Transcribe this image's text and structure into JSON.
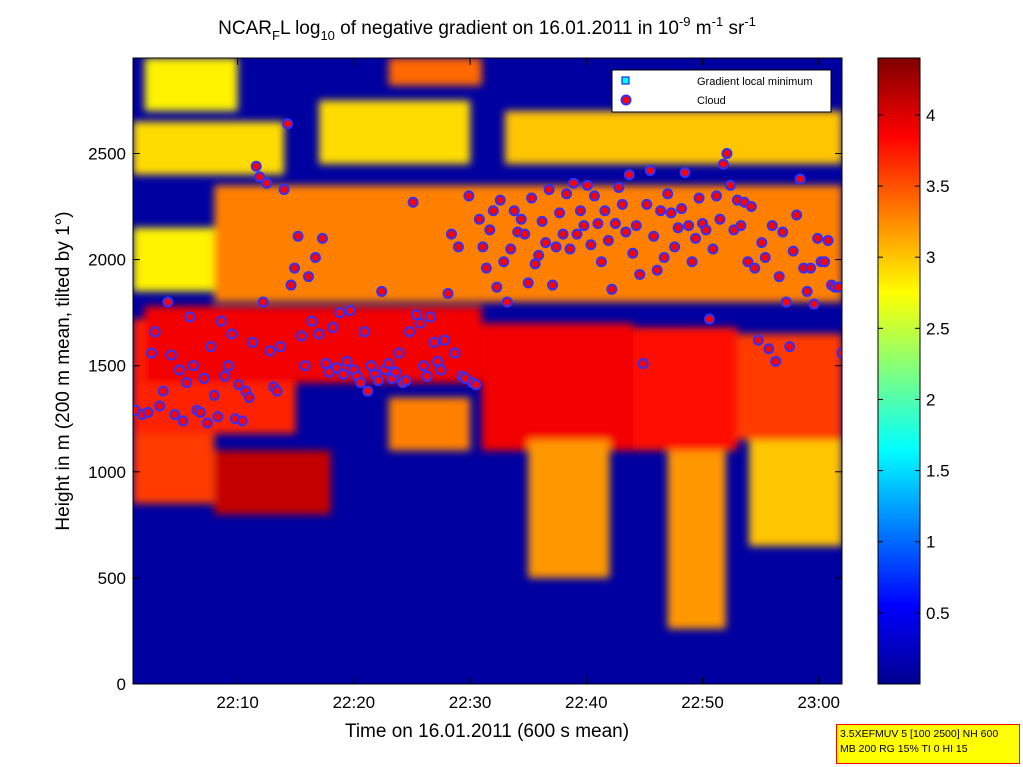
{
  "colors": {
    "background": "#0000a0",
    "colormap": "jet",
    "point_fill": "#ff0000",
    "point_edge": "#3030ff",
    "legend_min_marker": "#00ffff",
    "info_box": "#ffff00",
    "info_border": "#ff0000"
  },
  "info_box": {
    "line1": "3.5XEFMUV 5 [100 2500] NH 600",
    "line2": "MB 200 RG 15% TI 0 HI 15"
  },
  "chart_data": {
    "type": "heatmap",
    "title_parts": {
      "p1": "NCAR",
      "sub1": "F",
      "p2": "L log",
      "sub2": "10",
      "p3": " of negative gradient on 16.01.2011 in 10",
      "sup1": "-9",
      "p4": " m",
      "sup2": "-1",
      "p5": " sr",
      "sup3": "-1"
    },
    "xlabel": "Time on 16.01.2011 (600 s mean)",
    "ylabel": "Height in m (200 m mean, tilted by 1°)",
    "x_range_minutes": [
      1321,
      1382
    ],
    "x_ticks": [
      {
        "v": 1330,
        "label": "22:10"
      },
      {
        "v": 1340,
        "label": "22:20"
      },
      {
        "v": 1350,
        "label": "22:30"
      },
      {
        "v": 1360,
        "label": "22:40"
      },
      {
        "v": 1370,
        "label": "22:50"
      },
      {
        "v": 1380,
        "label": "23:00"
      }
    ],
    "ylim": [
      0,
      2950
    ],
    "y_ticks": [
      0,
      500,
      1000,
      1500,
      2000,
      2500
    ],
    "colorbar": {
      "range": [
        0,
        4.4
      ],
      "ticks": [
        0.5,
        1,
        1.5,
        2,
        2.5,
        3,
        3.5,
        4
      ],
      "labels": [
        "0.5",
        "1",
        "1.5",
        "2",
        "2.5",
        "3",
        "3.5",
        "4"
      ]
    },
    "legend": {
      "position": "top-right",
      "entries": [
        "Gradient local minimum",
        "Cloud"
      ]
    },
    "layers": [
      {
        "x0": 1321,
        "x1": 1328,
        "y0": 850,
        "y1": 1180,
        "v": 3.6
      },
      {
        "x0": 1321,
        "x1": 1335,
        "y0": 1180,
        "y1": 1720,
        "v": 3.7
      },
      {
        "x0": 1322,
        "x1": 1351,
        "y0": 1420,
        "y1": 1780,
        "v": 3.9
      },
      {
        "x0": 1328,
        "x1": 1338,
        "y0": 800,
        "y1": 1100,
        "v": 4.1
      },
      {
        "x0": 1343,
        "x1": 1350,
        "y0": 1100,
        "y1": 1350,
        "v": 3.3
      },
      {
        "x0": 1351,
        "x1": 1364,
        "y0": 1100,
        "y1": 1700,
        "v": 3.9
      },
      {
        "x0": 1355,
        "x1": 1362,
        "y0": 500,
        "y1": 1150,
        "v": 3.2
      },
      {
        "x0": 1364,
        "x1": 1373,
        "y0": 1100,
        "y1": 1680,
        "v": 3.8
      },
      {
        "x0": 1367,
        "x1": 1372,
        "y0": 260,
        "y1": 1100,
        "v": 3.2
      },
      {
        "x0": 1373,
        "x1": 1382,
        "y0": 1150,
        "y1": 1650,
        "v": 3.6
      },
      {
        "x0": 1374,
        "x1": 1382,
        "y0": 650,
        "y1": 1150,
        "v": 3.0
      },
      {
        "x0": 1321,
        "x1": 1334,
        "y0": 2400,
        "y1": 2650,
        "v": 2.9
      },
      {
        "x0": 1337,
        "x1": 1350,
        "y0": 2450,
        "y1": 2750,
        "v": 2.9
      },
      {
        "x0": 1343,
        "x1": 1351,
        "y0": 2820,
        "y1": 2950,
        "v": 3.4
      },
      {
        "x0": 1353,
        "x1": 1382,
        "y0": 2450,
        "y1": 2700,
        "v": 3.0
      },
      {
        "x0": 1322,
        "x1": 1330,
        "y0": 2700,
        "y1": 2950,
        "v": 2.8
      },
      {
        "x0": 1328,
        "x1": 1382,
        "y0": 1800,
        "y1": 2350,
        "v": 3.3
      },
      {
        "x0": 1321,
        "x1": 1328,
        "y0": 1850,
        "y1": 2150,
        "v": 2.8
      }
    ],
    "cloud_points": [
      [
        1321.2,
        1290
      ],
      [
        1321.8,
        1270
      ],
      [
        1322.3,
        1280
      ],
      [
        1322.6,
        1560
      ],
      [
        1322.9,
        1660
      ],
      [
        1323.3,
        1310
      ],
      [
        1323.6,
        1380
      ],
      [
        1324.0,
        1800
      ],
      [
        1324.3,
        1550
      ],
      [
        1324.6,
        1270
      ],
      [
        1325.0,
        1480
      ],
      [
        1325.3,
        1240
      ],
      [
        1325.6,
        1420
      ],
      [
        1325.9,
        1730
      ],
      [
        1326.2,
        1500
      ],
      [
        1326.5,
        1290
      ],
      [
        1326.8,
        1280
      ],
      [
        1327.1,
        1440
      ],
      [
        1327.4,
        1230
      ],
      [
        1327.7,
        1590
      ],
      [
        1328.0,
        1360
      ],
      [
        1328.3,
        1260
      ],
      [
        1328.6,
        1710
      ],
      [
        1328.9,
        1450
      ],
      [
        1329.2,
        1500
      ],
      [
        1329.5,
        1650
      ],
      [
        1329.8,
        1250
      ],
      [
        1330.1,
        1410
      ],
      [
        1330.4,
        1240
      ],
      [
        1330.7,
        1380
      ],
      [
        1331.0,
        1350
      ],
      [
        1331.3,
        1610
      ],
      [
        1331.6,
        2440
      ],
      [
        1331.9,
        2390
      ],
      [
        1332.2,
        1800
      ],
      [
        1332.5,
        2360
      ],
      [
        1332.8,
        1570
      ],
      [
        1333.1,
        1400
      ],
      [
        1333.4,
        1380
      ],
      [
        1333.7,
        1590
      ],
      [
        1334.0,
        2330
      ],
      [
        1334.3,
        2640
      ],
      [
        1334.6,
        1880
      ],
      [
        1334.9,
        1960
      ],
      [
        1335.2,
        2110
      ],
      [
        1335.5,
        1640
      ],
      [
        1335.8,
        1500
      ],
      [
        1336.1,
        1920
      ],
      [
        1336.4,
        1710
      ],
      [
        1336.7,
        2010
      ],
      [
        1337.0,
        1650
      ],
      [
        1337.3,
        2100
      ],
      [
        1337.6,
        1510
      ],
      [
        1337.9,
        1470
      ],
      [
        1338.2,
        1680
      ],
      [
        1338.5,
        1490
      ],
      [
        1338.8,
        1750
      ],
      [
        1339.1,
        1460
      ],
      [
        1339.4,
        1520
      ],
      [
        1339.7,
        1760
      ],
      [
        1340.0,
        1480
      ],
      [
        1340.3,
        1450
      ],
      [
        1340.6,
        1420
      ],
      [
        1340.9,
        1660
      ],
      [
        1341.2,
        1380
      ],
      [
        1341.5,
        1500
      ],
      [
        1341.8,
        1460
      ],
      [
        1342.1,
        1430
      ],
      [
        1342.4,
        1850
      ],
      [
        1342.7,
        1480
      ],
      [
        1343.0,
        1510
      ],
      [
        1343.3,
        1440
      ],
      [
        1343.6,
        1470
      ],
      [
        1343.9,
        1560
      ],
      [
        1344.2,
        1420
      ],
      [
        1344.5,
        1430
      ],
      [
        1344.8,
        1660
      ],
      [
        1345.1,
        2270
      ],
      [
        1345.4,
        1740
      ],
      [
        1345.7,
        1700
      ],
      [
        1346.0,
        1500
      ],
      [
        1346.3,
        1450
      ],
      [
        1346.6,
        1730
      ],
      [
        1346.9,
        1610
      ],
      [
        1347.2,
        1520
      ],
      [
        1347.5,
        1480
      ],
      [
        1347.8,
        1620
      ],
      [
        1348.1,
        1840
      ],
      [
        1348.4,
        2120
      ],
      [
        1348.7,
        1560
      ],
      [
        1349.0,
        2060
      ],
      [
        1349.3,
        1450
      ],
      [
        1349.6,
        1440
      ],
      [
        1349.9,
        2300
      ],
      [
        1350.2,
        1420
      ],
      [
        1350.5,
        1410
      ],
      [
        1350.8,
        2190
      ],
      [
        1351.1,
        2060
      ],
      [
        1351.4,
        1960
      ],
      [
        1351.7,
        2140
      ],
      [
        1352.0,
        2230
      ],
      [
        1352.3,
        1870
      ],
      [
        1352.6,
        2280
      ],
      [
        1352.9,
        1990
      ],
      [
        1353.2,
        1800
      ],
      [
        1353.5,
        2050
      ],
      [
        1353.8,
        2230
      ],
      [
        1354.1,
        2130
      ],
      [
        1354.4,
        2190
      ],
      [
        1354.7,
        2120
      ],
      [
        1355.0,
        1890
      ],
      [
        1355.3,
        2290
      ],
      [
        1355.6,
        1980
      ],
      [
        1355.9,
        2020
      ],
      [
        1356.2,
        2180
      ],
      [
        1356.5,
        2080
      ],
      [
        1356.8,
        2330
      ],
      [
        1357.1,
        1880
      ],
      [
        1357.4,
        2060
      ],
      [
        1357.7,
        2220
      ],
      [
        1358.0,
        2120
      ],
      [
        1358.3,
        2310
      ],
      [
        1358.6,
        2050
      ],
      [
        1358.9,
        2360
      ],
      [
        1359.2,
        2120
      ],
      [
        1359.5,
        2230
      ],
      [
        1359.8,
        2160
      ],
      [
        1360.1,
        2350
      ],
      [
        1360.4,
        2070
      ],
      [
        1360.7,
        2300
      ],
      [
        1361.0,
        2170
      ],
      [
        1361.3,
        1990
      ],
      [
        1361.6,
        2230
      ],
      [
        1361.9,
        2090
      ],
      [
        1362.2,
        1860
      ],
      [
        1362.5,
        2170
      ],
      [
        1362.8,
        2340
      ],
      [
        1363.1,
        2260
      ],
      [
        1363.4,
        2130
      ],
      [
        1363.7,
        2400
      ],
      [
        1364.0,
        2030
      ],
      [
        1364.3,
        2160
      ],
      [
        1364.6,
        1930
      ],
      [
        1364.9,
        1510
      ],
      [
        1365.2,
        2260
      ],
      [
        1365.5,
        2420
      ],
      [
        1365.8,
        2110
      ],
      [
        1366.1,
        1950
      ],
      [
        1366.4,
        2230
      ],
      [
        1366.7,
        2010
      ],
      [
        1367.0,
        2310
      ],
      [
        1367.3,
        2220
      ],
      [
        1367.6,
        2060
      ],
      [
        1367.9,
        2150
      ],
      [
        1368.2,
        2240
      ],
      [
        1368.5,
        2410
      ],
      [
        1368.8,
        2160
      ],
      [
        1369.1,
        1990
      ],
      [
        1369.4,
        2100
      ],
      [
        1369.7,
        2290
      ],
      [
        1370.0,
        2170
      ],
      [
        1370.3,
        2140
      ],
      [
        1370.6,
        1720
      ],
      [
        1370.9,
        2050
      ],
      [
        1371.2,
        2300
      ],
      [
        1371.5,
        2190
      ],
      [
        1371.8,
        2450
      ],
      [
        1372.1,
        2500
      ],
      [
        1372.4,
        2350
      ],
      [
        1372.7,
        2140
      ],
      [
        1373.0,
        2280
      ],
      [
        1373.3,
        2160
      ],
      [
        1373.6,
        2270
      ],
      [
        1373.9,
        1990
      ],
      [
        1374.2,
        2250
      ],
      [
        1374.5,
        1960
      ],
      [
        1374.8,
        1620
      ],
      [
        1375.1,
        2080
      ],
      [
        1375.4,
        2010
      ],
      [
        1375.7,
        1580
      ],
      [
        1376.0,
        2160
      ],
      [
        1376.3,
        1520
      ],
      [
        1376.6,
        1920
      ],
      [
        1376.9,
        2130
      ],
      [
        1377.2,
        1800
      ],
      [
        1377.5,
        1590
      ],
      [
        1377.8,
        2040
      ],
      [
        1378.1,
        2210
      ],
      [
        1378.4,
        2380
      ],
      [
        1378.7,
        1960
      ],
      [
        1379.0,
        1850
      ],
      [
        1379.3,
        1960
      ],
      [
        1379.6,
        1790
      ],
      [
        1379.9,
        2100
      ],
      [
        1380.2,
        1990
      ],
      [
        1380.5,
        1990
      ],
      [
        1380.8,
        2090
      ],
      [
        1381.1,
        1880
      ],
      [
        1381.4,
        1870
      ],
      [
        1381.7,
        1870
      ],
      [
        1382.0,
        1560
      ]
    ]
  }
}
